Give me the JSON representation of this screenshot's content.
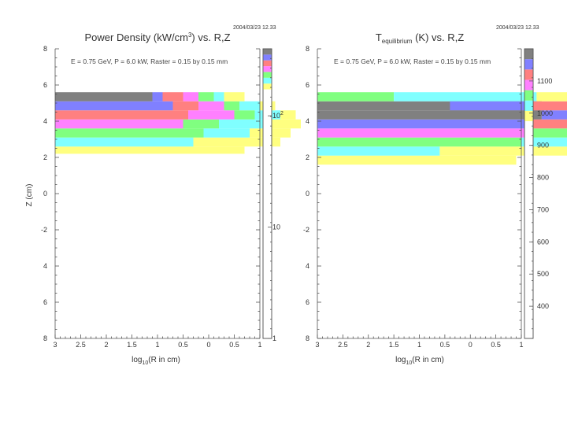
{
  "chart_data": [
    {
      "type": "heatmap",
      "timestamp": "2004/03/23   12.33",
      "title_main": "Power Density (kW/cm",
      "title_sup": "3",
      "title_tail": ") vs. R,Z",
      "annotation": "E = 0.75 GeV, P = 6.0 kW, Raster = 0.15 by 0.15 mm",
      "xlabel_pre": "log",
      "xlabel_sub": "10",
      "xlabel_post": "(R in cm)",
      "ylabel": "Z (cm)",
      "xlim": [
        3,
        1
      ],
      "ylim": [
        8,
        -8
      ],
      "x_ticks": [
        "3",
        "2.5",
        "2",
        "1.5",
        "1",
        "0.5",
        "0",
        "0.5",
        "1"
      ],
      "y_ticks": [
        "8",
        "6",
        "4",
        "2",
        "0",
        "-2",
        "4",
        "6",
        "8"
      ],
      "colorbar": {
        "scale": "log",
        "range": [
          1,
          400
        ],
        "labels": [
          {
            "value": 100,
            "text": "10",
            "sup": "2"
          },
          {
            "value": 10,
            "text": "10"
          },
          {
            "value": 1,
            "text": "1"
          }
        ],
        "colors": [
          "#ffff80",
          "#80ffff",
          "#80ff80",
          "#ff80ff",
          "#ff8080",
          "#8080ff",
          "#808080"
        ]
      },
      "rows": [
        {
          "z0": -2.2,
          "z1": -2.6,
          "cells": [
            [
              3,
              1.15,
              "#ffff80"
            ]
          ]
        },
        {
          "z0": -2.6,
          "z1": -3.1,
          "cells": [
            [
              3,
              1.65,
              "#80ffff"
            ],
            [
              1.65,
              0.8,
              "#ffff80"
            ]
          ]
        },
        {
          "z0": -3.1,
          "z1": -3.6,
          "cells": [
            [
              3,
              1.55,
              "#80ff80"
            ],
            [
              1.55,
              1.1,
              "#80ffff"
            ],
            [
              1.1,
              0.7,
              "#ffff80"
            ]
          ]
        },
        {
          "z0": -3.6,
          "z1": -4.1,
          "cells": [
            [
              3,
              1.75,
              "#ff80ff"
            ],
            [
              1.75,
              1.4,
              "#80ff80"
            ],
            [
              1.4,
              0.95,
              "#80ffff"
            ],
            [
              0.95,
              0.6,
              "#ffff80"
            ]
          ]
        },
        {
          "z0": -4.1,
          "z1": -4.6,
          "cells": [
            [
              3,
              1.7,
              "#ff8080"
            ],
            [
              1.7,
              1.25,
              "#ff80ff"
            ],
            [
              1.25,
              1.05,
              "#80ff80"
            ],
            [
              1.05,
              0.8,
              "#80ffff"
            ],
            [
              0.8,
              0.65,
              "#ffff80"
            ]
          ]
        },
        {
          "z0": -4.6,
          "z1": -5.1,
          "cells": [
            [
              3,
              1.85,
              "#8080ff"
            ],
            [
              1.85,
              1.6,
              "#ff8080"
            ],
            [
              1.6,
              1.35,
              "#ff80ff"
            ],
            [
              1.35,
              1.2,
              "#80ff80"
            ],
            [
              1.2,
              1.0,
              "#80ffff"
            ],
            [
              1.0,
              0.85,
              "#ffff80"
            ]
          ]
        },
        {
          "z0": -5.1,
          "z1": -5.6,
          "cells": [
            [
              3,
              2.05,
              "#808080"
            ],
            [
              2.05,
              1.95,
              "#8080ff"
            ],
            [
              1.95,
              1.75,
              "#ff8080"
            ],
            [
              1.75,
              1.6,
              "#ff80ff"
            ],
            [
              1.6,
              1.45,
              "#80ff80"
            ],
            [
              1.45,
              1.35,
              "#80ffff"
            ],
            [
              1.35,
              1.15,
              "#ffff80"
            ]
          ]
        }
      ]
    },
    {
      "type": "heatmap",
      "timestamp": "2004/03/23   12.33",
      "title_main": "T",
      "title_sub": "equilibrium",
      "title_tail": " (K) vs. R,Z",
      "annotation": "E = 0.75 GeV, P = 6.0 kW, Raster = 0.15 by 0.15 mm",
      "xlabel_pre": "log",
      "xlabel_sub": "10",
      "xlabel_post": "(R in cm)",
      "xlim": [
        3,
        1
      ],
      "ylim": [
        8,
        -8
      ],
      "x_ticks": [
        "3",
        "2.5",
        "2",
        "1.5",
        "1",
        "0.5",
        "0",
        "0.5",
        "1"
      ],
      "y_ticks": [
        "8",
        "6",
        "4",
        "2",
        "0",
        "-2",
        "4",
        "6",
        "8"
      ],
      "colorbar": {
        "scale": "linear",
        "range": [
          300,
          1200
        ],
        "labels": [
          {
            "value": 400,
            "text": "400"
          },
          {
            "value": 500,
            "text": "500"
          },
          {
            "value": 600,
            "text": "600"
          },
          {
            "value": 700,
            "text": "700"
          },
          {
            "value": 800,
            "text": "800"
          },
          {
            "value": 900,
            "text": "900"
          },
          {
            "value": 1000,
            "text": "1000"
          },
          {
            "value": 1100,
            "text": "1100"
          }
        ],
        "colors": [
          "#ffff80",
          "#80ffff",
          "#80ff80",
          "#ff80ff",
          "#ff8080",
          "#8080ff",
          "#808080"
        ]
      },
      "rows": [
        {
          "z0": -1.6,
          "z1": -2.1,
          "cells": [
            [
              3,
              1.05,
              "#ffff80"
            ]
          ]
        },
        {
          "z0": -2.1,
          "z1": -2.6,
          "cells": [
            [
              3,
              1.8,
              "#80ffff"
            ],
            [
              1.8,
              -0.05,
              "#ffff80"
            ]
          ]
        },
        {
          "z0": -2.6,
          "z1": -3.1,
          "cells": [
            [
              3,
              1.0,
              "#80ff80"
            ],
            [
              1.0,
              -0.5,
              "#80ffff"
            ],
            [
              -0.5,
              -0.5,
              "#ffff80"
            ]
          ]
        },
        {
          "z0": -3.1,
          "z1": -3.6,
          "cells": [
            [
              3,
              0.95,
              "#ff80ff"
            ],
            [
              0.95,
              0.45,
              "#80ff80"
            ],
            [
              0.45,
              0.1,
              "#80ffff"
            ],
            [
              0.1,
              -0.4,
              "#ffff80"
            ]
          ]
        },
        {
          "z0": -3.6,
          "z1": -4.1,
          "cells": [
            [
              3,
              0.9,
              "#8080ff"
            ],
            [
              0.9,
              0.4,
              "#ff8080"
            ],
            [
              0.4,
              0.05,
              "#ff80ff"
            ],
            [
              0.05,
              -0.2,
              "#80ff80"
            ],
            [
              -0.2,
              -0.45,
              "#80ffff"
            ],
            [
              -0.45,
              -0.6,
              "#ffff80"
            ]
          ]
        },
        {
          "z0": -4.1,
          "z1": -4.6,
          "cells": [
            [
              3,
              0.8,
              "#808080"
            ],
            [
              0.8,
              0.5,
              "#8080ff"
            ],
            [
              0.5,
              0.2,
              "#ff8080"
            ],
            [
              0.2,
              0.0,
              "#ff80ff"
            ],
            [
              0.0,
              -0.3,
              "#80ff80"
            ],
            [
              -0.3,
              -0.5,
              "#80ffff"
            ],
            [
              -0.5,
              -0.65,
              "#ffff80"
            ]
          ]
        },
        {
          "z0": -4.6,
          "z1": -5.1,
          "cells": [
            [
              3,
              0.8,
              "#808080"
            ],
            [
              0.8,
              1.7,
              "#808080"
            ],
            [
              1.7,
              0.9,
              "#8080ff"
            ],
            [
              0.9,
              0.55,
              "#ff8080"
            ],
            [
              0.55,
              0.3,
              "#ff80ff"
            ],
            [
              0.3,
              -0.1,
              "#80ff80"
            ],
            [
              -0.1,
              -0.45,
              "#80ffff"
            ],
            [
              -0.45,
              -0.5,
              "#ffff80"
            ]
          ]
        },
        {
          "z0": -5.1,
          "z1": -5.6,
          "cells": [
            [
              3,
              2.25,
              "#80ff80"
            ],
            [
              2.25,
              0.85,
              "#80ffff"
            ],
            [
              0.85,
              -0.1,
              "#ffff80"
            ]
          ]
        }
      ]
    }
  ]
}
